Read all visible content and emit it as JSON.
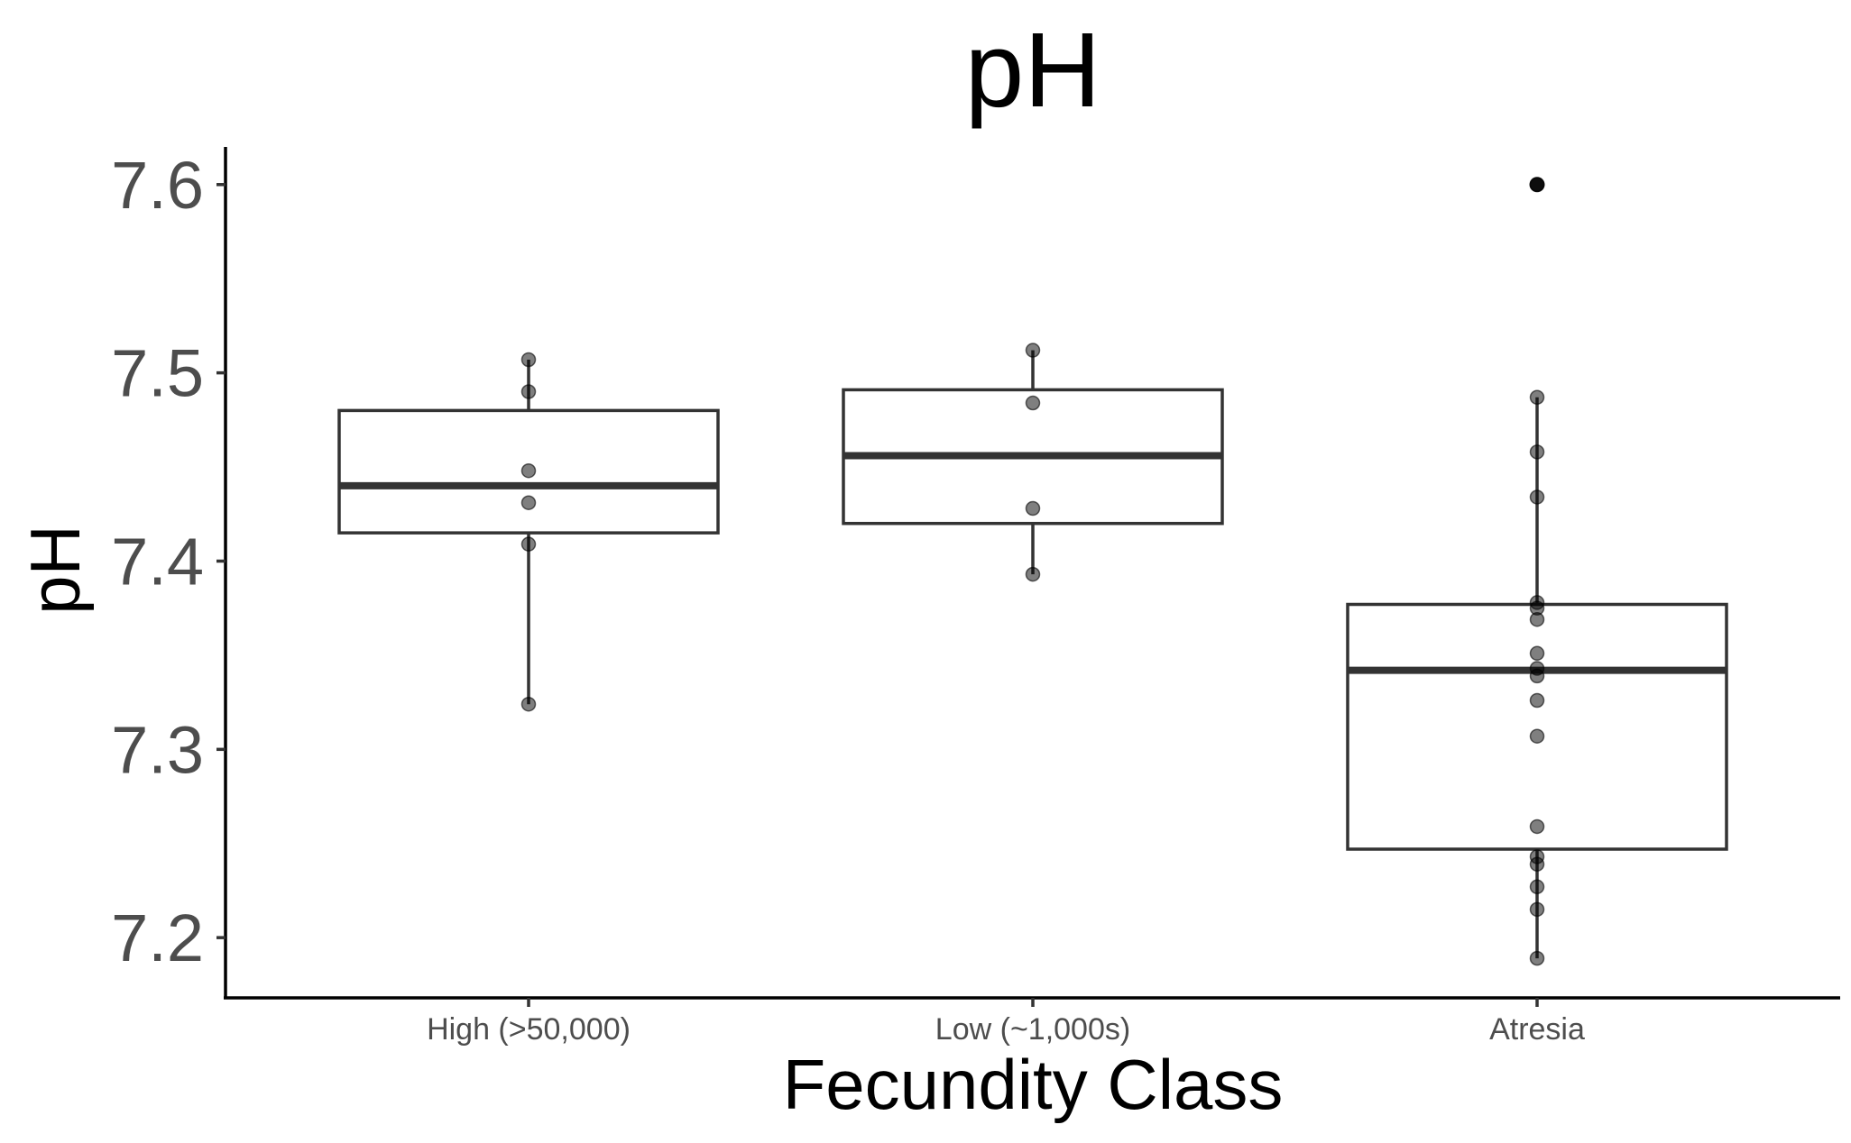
{
  "chart_data": {
    "type": "box",
    "title": "pH",
    "xlabel": "Fecundity Class",
    "ylabel": "pH",
    "categories": [
      "High (>50,000)",
      "Low (~1,000s)",
      "Atresia"
    ],
    "ylim": [
      7.168,
      7.62
    ],
    "yticks": [
      7.2,
      7.3,
      7.4,
      7.5,
      7.6
    ],
    "ytick_labels": [
      "7.2",
      "7.3",
      "7.4",
      "7.5",
      "7.6"
    ],
    "grid": false,
    "boxes": [
      {
        "category": "High (>50,000)",
        "q1": 7.415,
        "median": 7.44,
        "q3": 7.48,
        "whisker_low": 7.324,
        "whisker_high": 7.507,
        "outliers": []
      },
      {
        "category": "Low (~1,000s)",
        "q1": 7.42,
        "median": 7.456,
        "q3": 7.491,
        "whisker_low": 7.393,
        "whisker_high": 7.512,
        "outliers": []
      },
      {
        "category": "Atresia",
        "q1": 7.247,
        "median": 7.342,
        "q3": 7.377,
        "whisker_low": 7.189,
        "whisker_high": 7.487,
        "outliers": [
          7.6
        ]
      }
    ],
    "points": [
      {
        "category": "High (>50,000)",
        "values": [
          7.507,
          7.49,
          7.448,
          7.431,
          7.409,
          7.324
        ]
      },
      {
        "category": "Low (~1,000s)",
        "values": [
          7.512,
          7.484,
          7.428,
          7.393
        ]
      },
      {
        "category": "Atresia",
        "values": [
          7.6,
          7.487,
          7.458,
          7.434,
          7.378,
          7.375,
          7.369,
          7.351,
          7.343,
          7.339,
          7.326,
          7.307,
          7.259,
          7.243,
          7.239,
          7.227,
          7.215,
          7.189
        ]
      }
    ]
  }
}
